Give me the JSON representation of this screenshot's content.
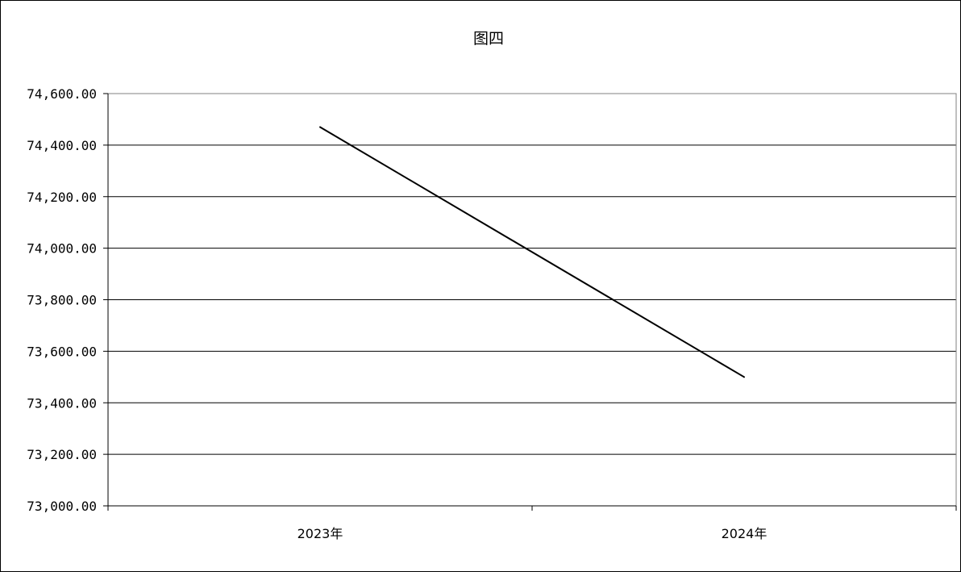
{
  "chart_data": {
    "type": "line",
    "title": "图四",
    "xlabel": "",
    "ylabel": "",
    "categories": [
      "2023年",
      "2024年"
    ],
    "series": [
      {
        "values": [
          74470,
          73500
        ]
      }
    ],
    "ylim": [
      73000,
      74600
    ],
    "yticks": [
      73000,
      73200,
      73400,
      73600,
      73800,
      74000,
      74200,
      74400,
      74600
    ],
    "ytick_labels": [
      "73,000.00",
      "73,200.00",
      "73,400.00",
      "73,600.00",
      "73,800.00",
      "74,000.00",
      "74,200.00",
      "74,400.00",
      "74,600.00"
    ],
    "grid": "horizontal",
    "legend": "none",
    "colors": {
      "line": "#000000",
      "grid": "#000000",
      "plot_border": "#808080"
    }
  }
}
